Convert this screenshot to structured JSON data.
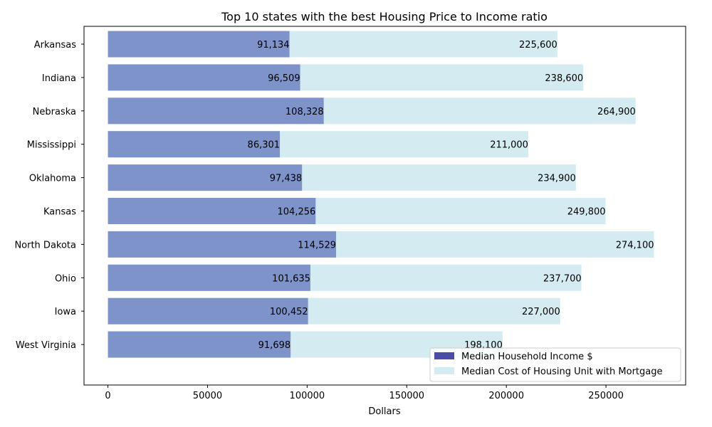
{
  "chart_data": {
    "type": "bar",
    "orientation": "horizontal",
    "title": "Top 10 states with the best Housing Price to Income ratio",
    "xlabel": "Dollars",
    "ylabel": "",
    "xlim": [
      -12000,
      290000
    ],
    "xticks": [
      0,
      50000,
      100000,
      150000,
      200000,
      250000
    ],
    "xtick_labels": [
      "0",
      "50000",
      "100000",
      "150000",
      "200000",
      "250000"
    ],
    "categories": [
      "Arkansas",
      "Indiana",
      "Nebraska",
      "Mississippi",
      "Oklahoma",
      "Kansas",
      "North Dakota",
      "Ohio",
      "Iowa",
      "West Virginia"
    ],
    "series": [
      {
        "name": "Median Household Income $",
        "color": "#4B4BA8",
        "bar_color": "#7F93CB",
        "values": [
          91134,
          96509,
          108328,
          86301,
          97438,
          104256,
          114529,
          101635,
          100452,
          91698
        ],
        "labels": [
          "91,134",
          "96,509",
          "108,328",
          "86,301",
          "97,438",
          "104,256",
          "114,529",
          "101,635",
          "100,452",
          "91,698"
        ]
      },
      {
        "name": "Median Cost of Housing Unit with Mortgage",
        "color": "#D4ECF1",
        "bar_color": "#D4ECF1",
        "values": [
          225600,
          238600,
          264900,
          211000,
          234900,
          249800,
          274100,
          237700,
          227000,
          198100
        ],
        "labels": [
          "225,600",
          "238,600",
          "264,900",
          "211,000",
          "234,900",
          "249,800",
          "274,100",
          "237,700",
          "227,000",
          "198,100"
        ]
      }
    ],
    "grid": false,
    "legend_position": "lower-right"
  }
}
